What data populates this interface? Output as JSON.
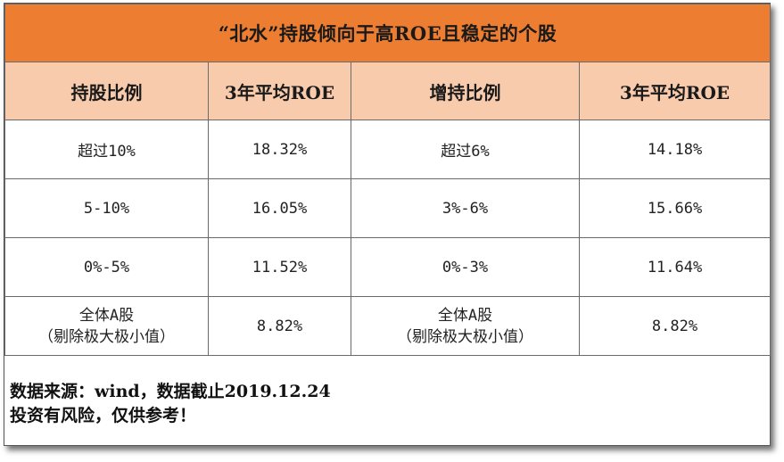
{
  "title": "“北水”持股倾向于高ROE且稳定的个股",
  "headers": [
    "持股比例",
    "3年平均ROE",
    "增持比例",
    "3年平均ROE"
  ],
  "rows": [
    {
      "hold_ratio": "超过10%",
      "hold_roe": "18.32%",
      "add_ratio": "超过6%",
      "add_roe": "14.18%"
    },
    {
      "hold_ratio": "5-10%",
      "hold_roe": "16.05%",
      "add_ratio": "3%-6%",
      "add_roe": "15.66%"
    },
    {
      "hold_ratio": "0%-5%",
      "hold_roe": "11.52%",
      "add_ratio": "0%-3%",
      "add_roe": "11.64%"
    },
    {
      "hold_ratio_line1": "全体A股",
      "hold_ratio_line2": "（剔除极大极小值）",
      "hold_roe": "8.82%",
      "add_ratio_line1": "全体A股",
      "add_ratio_line2": "（剔除极大极小值）",
      "add_roe": "8.82%"
    }
  ],
  "footer": {
    "source": "数据来源：wind，数据截止2019.12.24",
    "disclaimer": "投资有风险，仅供参考！"
  },
  "colors": {
    "title_bg": "#ed7d31",
    "header_bg": "#f8cbad",
    "border": "#6a6a6a"
  }
}
